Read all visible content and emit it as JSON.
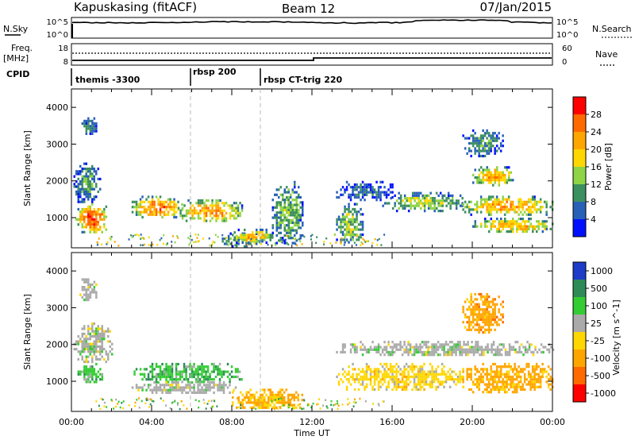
{
  "header": {
    "station": "Kapuskasing (fitACF)",
    "beam": "Beam 12",
    "date": "07/Jan/2015"
  },
  "top_panels": {
    "nsky_label": "N.Sky",
    "nsearch_label": "N.Search",
    "nsky_ticks": [
      "10^5",
      "10^0"
    ],
    "nsky_right_ticks": [
      "10^5",
      "10^0"
    ],
    "freq_label": "Freq.",
    "freq_unit": "[MHz]",
    "freq_ticks": [
      "18",
      "8"
    ],
    "nave_label": "Nave",
    "nave_ticks": [
      "60",
      "0"
    ],
    "cpid_label": "CPID",
    "cpid_segments": [
      {
        "label": "themis -3300",
        "start_hr": 0
      },
      {
        "label": "rbsp 200",
        "start_hr": 6
      },
      {
        "label": "rbsp CT-trig 220",
        "start_hr": 9.5
      }
    ]
  },
  "power_colorbar": {
    "label": "Power [dB]",
    "ticks": [
      "28",
      "24",
      "20",
      "16",
      "12",
      "8",
      "4"
    ],
    "colors": [
      "#ff0000",
      "#ff6a00",
      "#ffa500",
      "#ffd700",
      "#8fd444",
      "#3c8f5e",
      "#2860b8",
      "#0010ff"
    ]
  },
  "velocity_colorbar": {
    "label": "Velocity [m s^-1]",
    "ticks": [
      "1000",
      "500",
      "100",
      "25",
      "-25",
      "-100",
      "-500",
      "-1000"
    ],
    "colors": [
      "#1e3cc8",
      "#2e8b57",
      "#33cc33",
      "#aaaaaa",
      "#ffd700",
      "#ffa500",
      "#ff6a00",
      "#ff0000"
    ]
  },
  "axes": {
    "ylabel": "Slant Range [km]",
    "yticks": [
      "4000",
      "3000",
      "2000",
      "1000"
    ],
    "xticks": [
      "00:00",
      "04:00",
      "08:00",
      "12:00",
      "16:00",
      "20:00",
      "00:00"
    ],
    "xlabel": "Time UT"
  },
  "chart_data": [
    {
      "type": "heatmap",
      "quantity": "power",
      "x_unit": "hours UT",
      "y_unit": "km",
      "xlim": [
        0,
        24
      ],
      "ylim": [
        180,
        4500
      ],
      "clim": [
        0,
        30
      ],
      "blobs": [
        {
          "x0": 0.2,
          "x1": 1.8,
          "y0": 600,
          "y1": 1400,
          "v": 26
        },
        {
          "x0": 0.1,
          "x1": 1.4,
          "y0": 1400,
          "y1": 2500,
          "v": 10
        },
        {
          "x0": 0.5,
          "x1": 1.2,
          "y0": 3200,
          "y1": 3800,
          "v": 8
        },
        {
          "x0": 3.0,
          "x1": 5.5,
          "y0": 1000,
          "y1": 1600,
          "v": 24
        },
        {
          "x0": 5.3,
          "x1": 8.5,
          "y0": 900,
          "y1": 1500,
          "v": 22
        },
        {
          "x0": 7.5,
          "x1": 9.5,
          "y0": 250,
          "y1": 600,
          "v": 14
        },
        {
          "x0": 8.0,
          "x1": 10.0,
          "y0": 350,
          "y1": 700,
          "v": 20
        },
        {
          "x0": 10.0,
          "x1": 11.5,
          "y0": 300,
          "y1": 2000,
          "v": 12
        },
        {
          "x0": 13.2,
          "x1": 16.0,
          "y0": 1500,
          "y1": 2000,
          "v": 6
        },
        {
          "x0": 13.2,
          "x1": 14.5,
          "y0": 300,
          "y1": 1400,
          "v": 14
        },
        {
          "x0": 15.5,
          "x1": 19.5,
          "y0": 1200,
          "y1": 1700,
          "v": 14
        },
        {
          "x0": 19.5,
          "x1": 24.0,
          "y0": 1100,
          "y1": 1600,
          "v": 22
        },
        {
          "x0": 20.0,
          "x1": 22.0,
          "y0": 1900,
          "y1": 2400,
          "v": 22
        },
        {
          "x0": 20.0,
          "x1": 24.0,
          "y0": 600,
          "y1": 1000,
          "v": 20
        },
        {
          "x0": 19.5,
          "x1": 21.5,
          "y0": 2700,
          "y1": 3400,
          "v": 10
        }
      ]
    },
    {
      "type": "heatmap",
      "quantity": "velocity",
      "x_unit": "hours UT",
      "y_unit": "km",
      "xlim": [
        0,
        24
      ],
      "ylim": [
        180,
        4500
      ],
      "clim": [
        -1000,
        1000
      ],
      "blobs": [
        {
          "x0": 0.3,
          "x1": 1.5,
          "y0": 1000,
          "y1": 1500,
          "v": 60
        },
        {
          "x0": 0.1,
          "x1": 2.0,
          "y0": 1500,
          "y1": 2600,
          "v": 0
        },
        {
          "x0": 0.4,
          "x1": 1.2,
          "y0": 3200,
          "y1": 3800,
          "v": 0
        },
        {
          "x0": 3.0,
          "x1": 8.5,
          "y0": 1000,
          "y1": 1500,
          "v": 80
        },
        {
          "x0": 3.0,
          "x1": 8.5,
          "y0": 700,
          "y1": 1000,
          "v": 0
        },
        {
          "x0": 8.0,
          "x1": 11.5,
          "y0": 250,
          "y1": 800,
          "v": -150
        },
        {
          "x0": 13.2,
          "x1": 24.0,
          "y0": 1700,
          "y1": 2100,
          "v": 0
        },
        {
          "x0": 13.2,
          "x1": 19.5,
          "y0": 800,
          "y1": 1500,
          "v": -60
        },
        {
          "x0": 19.5,
          "x1": 24.0,
          "y0": 700,
          "y1": 1500,
          "v": -200
        },
        {
          "x0": 19.5,
          "x1": 21.5,
          "y0": 2300,
          "y1": 3400,
          "v": -300
        }
      ]
    }
  ]
}
